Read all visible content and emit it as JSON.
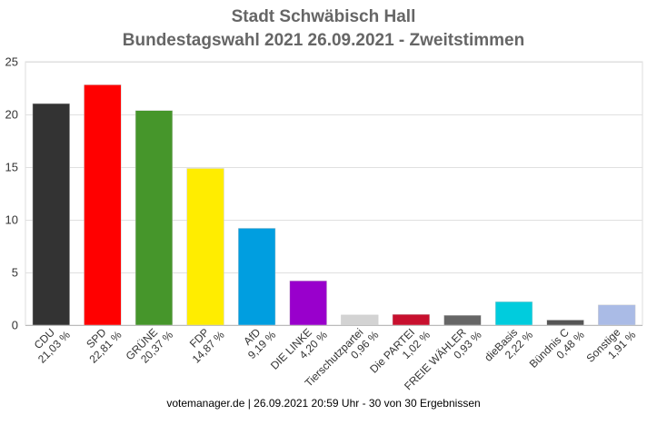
{
  "title": "Stadt Schwäbisch Hall",
  "subtitle": "Bundestagswahl 2021 26.09.2021  - Zweitstimmen",
  "footer": "votemanager.de | 26.09.2021 20:59 Uhr - 30 von 30 Ergebnissen",
  "chart_data": {
    "type": "bar",
    "title": "Stadt Schwäbisch Hall",
    "subtitle": "Bundestagswahl 2021 26.09.2021  - Zweitstimmen",
    "categories": [
      "CDU",
      "SPD",
      "GRÜNE",
      "FDP",
      "AfD",
      "DIE LINKE",
      "Tierschutzpartei",
      "Die PARTEI",
      "FREIE WÄHLER",
      "dieBasis",
      "Bündnis C",
      "Sonstige"
    ],
    "value_labels": [
      "21,03 %",
      "22,81 %",
      "20,37 %",
      "14,87 %",
      "9,19 %",
      "4,20 %",
      "0,96 %",
      "1,02 %",
      "0,93 %",
      "2,22 %",
      "0,48 %",
      "1,91 %"
    ],
    "values": [
      21.03,
      22.81,
      20.37,
      14.87,
      9.19,
      4.2,
      0.96,
      1.02,
      0.93,
      2.22,
      0.48,
      1.91
    ],
    "colors": [
      "#333333",
      "#ff0000",
      "#46962b",
      "#ffed00",
      "#009ee0",
      "#9900cc",
      "#d3d3d3",
      "#c8102e",
      "#666666",
      "#00ccdd",
      "#555555",
      "#aabbe6"
    ],
    "ylim": [
      0,
      25
    ],
    "yticks": [
      0,
      5,
      10,
      15,
      20,
      25
    ],
    "grid": true,
    "xlabel": "",
    "ylabel": ""
  }
}
